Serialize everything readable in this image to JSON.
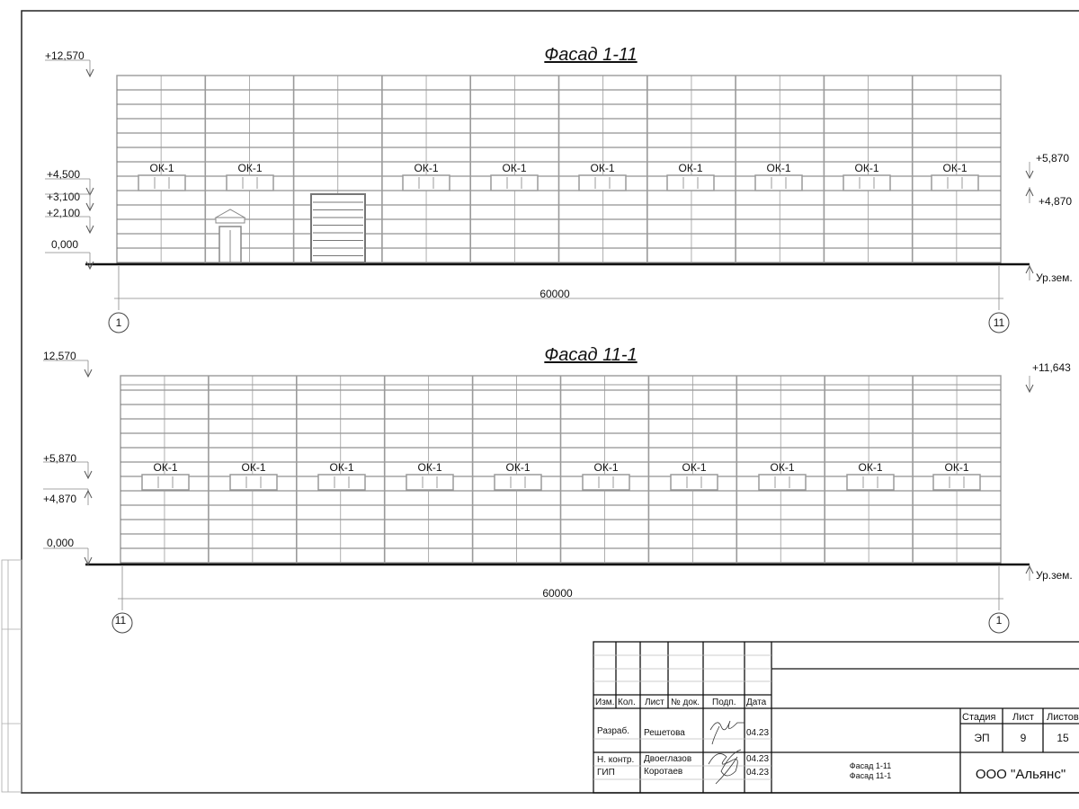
{
  "facade_top": {
    "title": "Фасад 1-11",
    "window_label": "ОК-1",
    "levels_left": [
      "+12,570",
      "+4,500",
      "+3,100",
      "+2,100",
      "0,000"
    ],
    "levels_right": [
      "+5,870",
      "+4,870",
      "Ур.зем."
    ],
    "dimension": "60000",
    "axis_start": "1",
    "axis_end": "11"
  },
  "facade_bottom": {
    "title": "Фасад 11-1",
    "window_label": "ОК-1",
    "levels_left": [
      "12,570",
      "+5,870",
      "+4,870",
      "0,000"
    ],
    "levels_right": [
      "+11,643",
      "Ур.зем."
    ],
    "dimension": "60000",
    "axis_start": "11",
    "axis_end": "1"
  },
  "title_block": {
    "headers": [
      "Изм.",
      "Кол.",
      "Лист",
      "№ док.",
      "Подп.",
      "Дата"
    ],
    "rows": [
      {
        "role": "Разраб.",
        "name": "Решетова",
        "date": "04.23"
      },
      {
        "role": "Н. контр.",
        "name": "Двоеглазов",
        "date": "04.23"
      },
      {
        "role": "ГИП",
        "name": "Коротаев",
        "date": "04.23"
      }
    ],
    "sheet_title_1": "Фасад 1-11",
    "sheet_title_2": "Фасад 11-1",
    "stage_header": "Стадия",
    "sheet_header": "Лист",
    "sheets_header": "Листов",
    "stage": "ЭП",
    "sheet": "9",
    "sheets": "15",
    "company": "ООО \"Альянс\""
  },
  "colors": {
    "line": "#111111",
    "panel": "#9a9a9a"
  }
}
